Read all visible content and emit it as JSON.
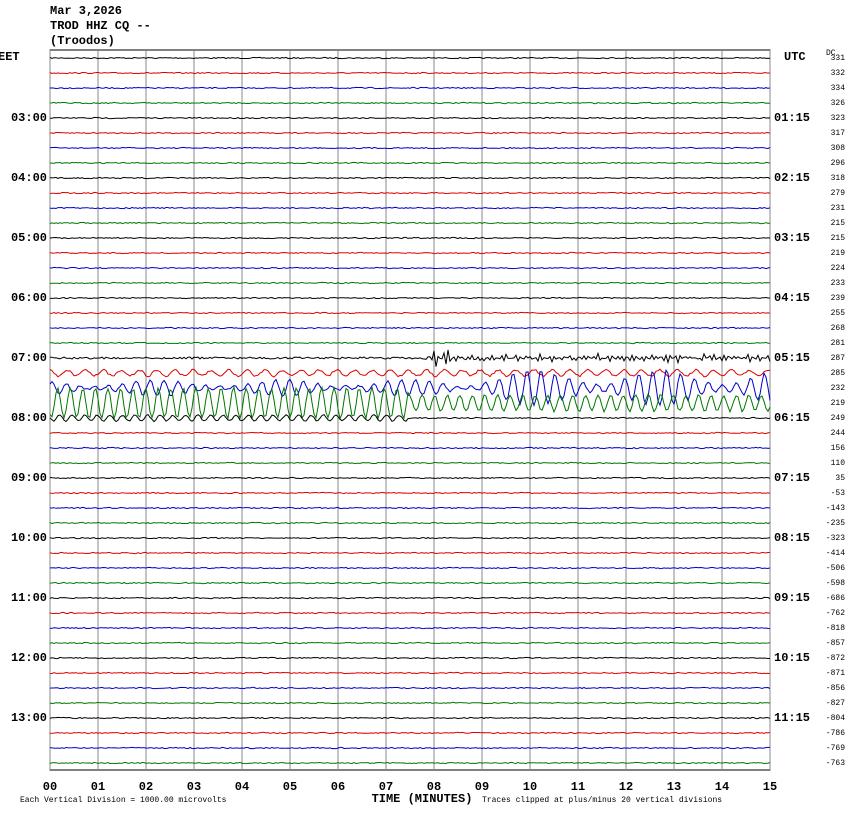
{
  "header": {
    "date": "Mar 3,2026",
    "station": "TROD HHZ CQ --",
    "location": "(Troodos)"
  },
  "left_axis": {
    "zone": "EET",
    "labels": [
      "03:00",
      "04:00",
      "05:00",
      "06:00",
      "07:00",
      "08:00",
      "09:00",
      "10:00",
      "11:00",
      "12:00",
      "13:00"
    ]
  },
  "right_axis": {
    "zone": "UTC",
    "labels": [
      "01:15",
      "02:15",
      "03:15",
      "04:15",
      "05:15",
      "06:15",
      "07:15",
      "08:15",
      "09:15",
      "10:15",
      "11:15"
    ]
  },
  "dc_column": {
    "title": "DC",
    "values": [
      331,
      332,
      334,
      326,
      323,
      317,
      308,
      296,
      318,
      279,
      231,
      215,
      215,
      219,
      224,
      233,
      239,
      255,
      268,
      281,
      287,
      285,
      232,
      219,
      249,
      244,
      156,
      110,
      35,
      -53,
      -143,
      -235,
      -323,
      -414,
      -506,
      -598,
      -686,
      -762,
      -818,
      -857,
      -872,
      -871,
      -856,
      -827,
      -804,
      -786,
      -769,
      -763
    ]
  },
  "x_axis": {
    "title": "TIME (MINUTES)",
    "ticks": [
      "00",
      "01",
      "02",
      "03",
      "04",
      "05",
      "06",
      "07",
      "08",
      "09",
      "10",
      "11",
      "12",
      "13",
      "14",
      "15"
    ]
  },
  "footer": {
    "scale": "Each Vertical Division = 1000.00 microvolts",
    "clip": "Traces clipped at plus/minus 20 vertical divisions"
  }
}
